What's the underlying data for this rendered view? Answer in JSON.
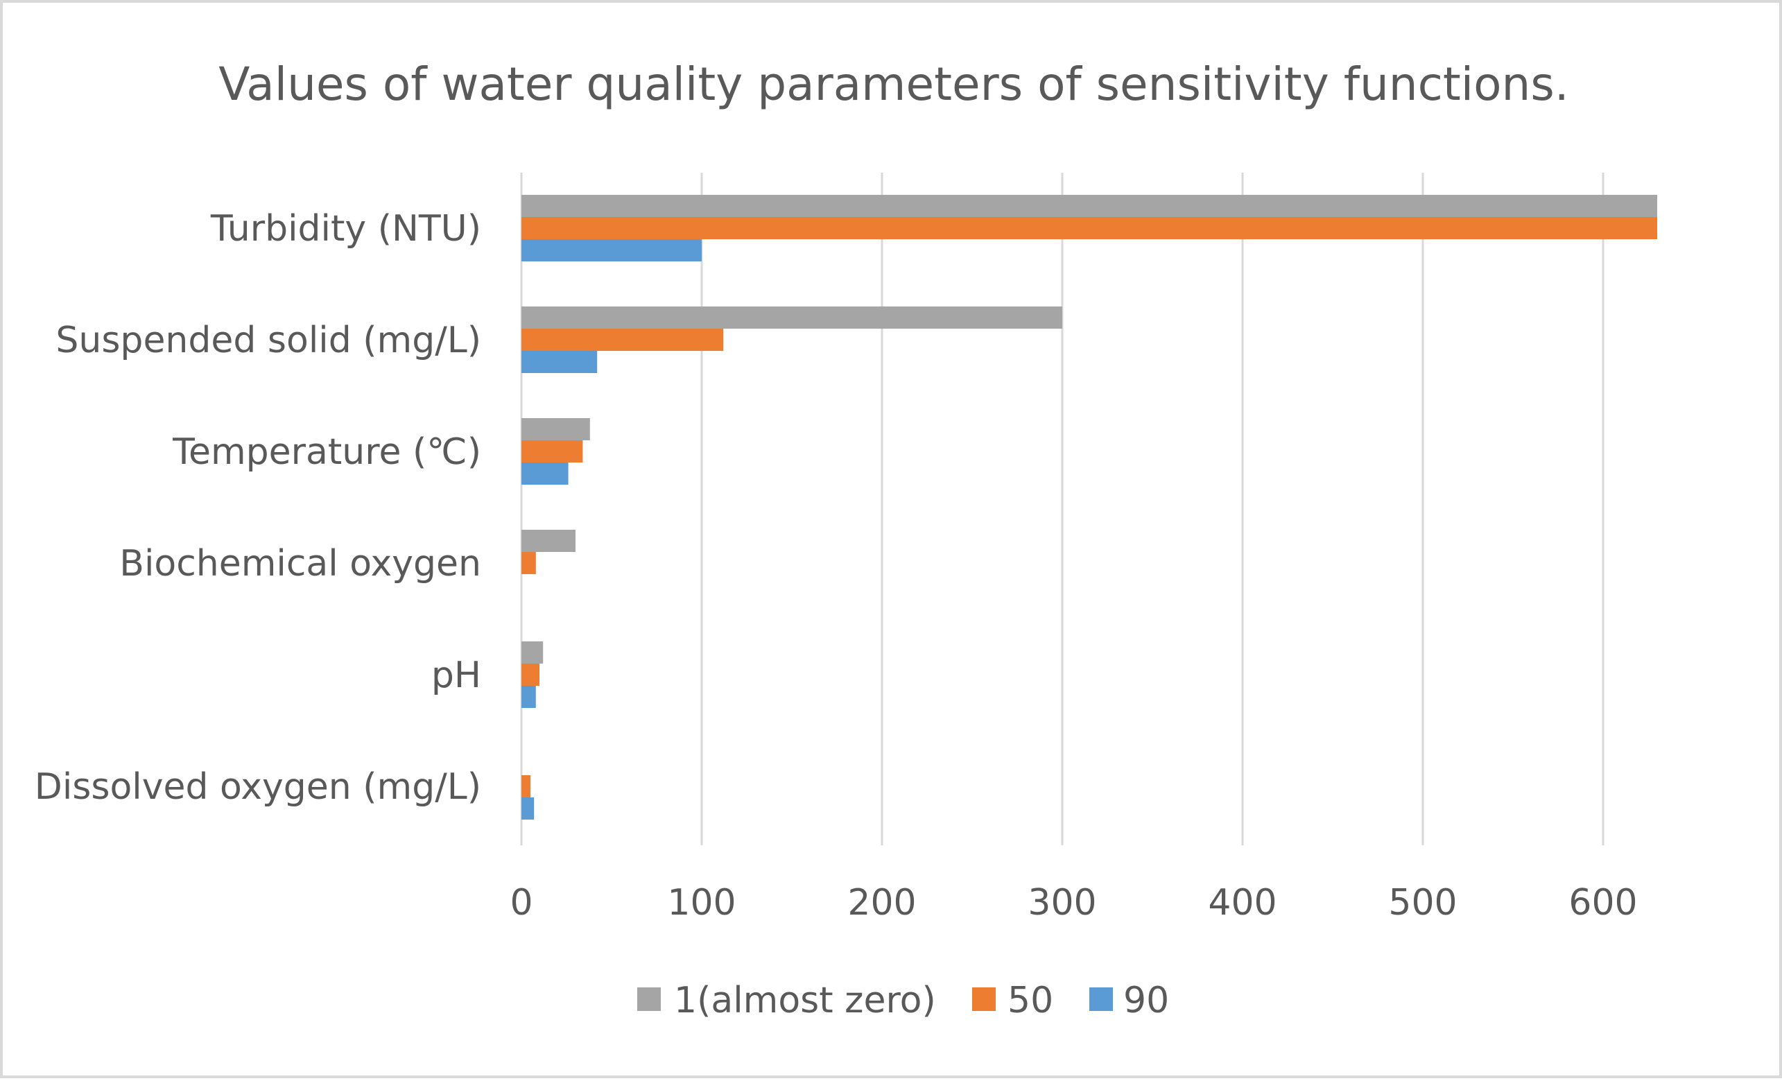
{
  "chart_data": {
    "type": "bar",
    "orientation": "horizontal",
    "title": "Values of water quality parameters of sensitivity functions.",
    "categories": [
      "Turbidity (NTU)",
      "Suspended solid (mg/L)",
      "Temperature (℃)",
      "Biochemical oxygen",
      "pH",
      "Dissolved oxygen (mg/L)"
    ],
    "series": [
      {
        "name": "1(almost zero)",
        "color": "#a5a5a5",
        "values": [
          630,
          300,
          38,
          30,
          12,
          0
        ]
      },
      {
        "name": "50",
        "color": "#ed7d31",
        "values": [
          630,
          112,
          34,
          8,
          10,
          5
        ]
      },
      {
        "name": "90",
        "color": "#5b9bd5",
        "values": [
          100,
          42,
          26,
          0,
          8,
          7
        ]
      }
    ],
    "xlim": [
      0,
      640
    ],
    "xticks": [
      "0",
      "100",
      "200",
      "300",
      "400",
      "500",
      "600"
    ],
    "grid": true,
    "legend_position": "bottom"
  }
}
